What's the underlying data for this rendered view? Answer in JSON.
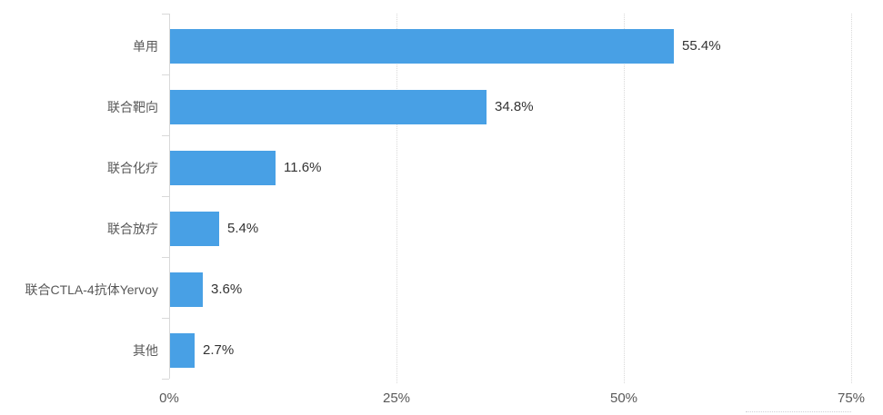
{
  "chart_data": {
    "type": "bar",
    "orientation": "horizontal",
    "title": "",
    "xlabel": "",
    "ylabel": "",
    "categories": [
      "单用",
      "联合靶向",
      "联合化疗",
      "联合放疗",
      "联合CTLA-4抗体Yervoy",
      "其他"
    ],
    "values": [
      55.4,
      34.8,
      11.6,
      5.4,
      3.6,
      2.7
    ],
    "value_labels": [
      "55.4%",
      "34.8%",
      "11.6%",
      "5.4%",
      "3.6%",
      "2.7%"
    ],
    "x_ticks": [
      {
        "value": 0,
        "label": "0%"
      },
      {
        "value": 25,
        "label": "25%"
      },
      {
        "value": 50,
        "label": "50%"
      },
      {
        "value": 75,
        "label": "75%"
      }
    ],
    "xlim": [
      0,
      75
    ],
    "grid": "vertical-dotted",
    "legend": "none",
    "background": "#FFFFFF",
    "colors": {
      "bar": "#48A0E5",
      "axis_line": "#D9D9D9",
      "gridline": "#D9D9D9",
      "category_label": "#595959",
      "tick_label": "#595959",
      "data_label": "#333333"
    }
  }
}
